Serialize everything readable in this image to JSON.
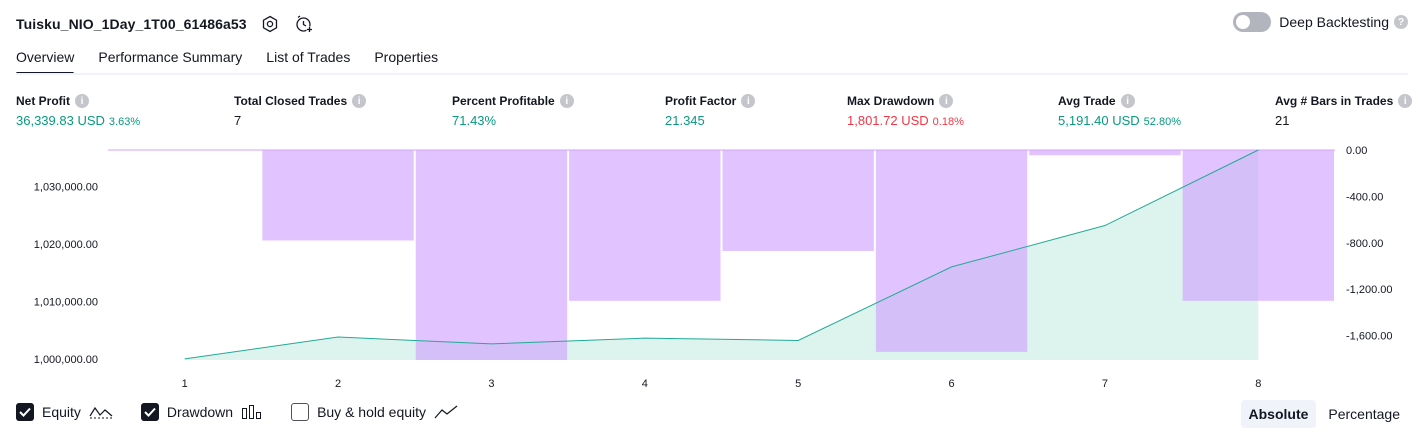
{
  "header": {
    "strategy_title": "Tuisku_NIO_1Day_1T00_61486a53",
    "deep_backtesting_label": "Deep Backtesting",
    "deep_backtesting_enabled": false
  },
  "tabs": [
    {
      "label": "Overview",
      "active": true
    },
    {
      "label": "Performance Summary",
      "active": false
    },
    {
      "label": "List of Trades",
      "active": false
    },
    {
      "label": "Properties",
      "active": false
    }
  ],
  "stats": [
    {
      "label": "Net Profit",
      "value": "36,339.83 USD",
      "pct": "3.63%",
      "tone": "pos"
    },
    {
      "label": "Total Closed Trades",
      "value": "7",
      "pct": "",
      "tone": "neutral"
    },
    {
      "label": "Percent Profitable",
      "value": "71.43%",
      "pct": "",
      "tone": "pos"
    },
    {
      "label": "Profit Factor",
      "value": "21.345",
      "pct": "",
      "tone": "pos"
    },
    {
      "label": "Max Drawdown",
      "value": "1,801.72 USD",
      "pct": "0.18%",
      "tone": "neg"
    },
    {
      "label": "Avg Trade",
      "value": "5,191.40 USD",
      "pct": "52.80%",
      "tone": "pos"
    },
    {
      "label": "Avg # Bars in Trades",
      "value": "21",
      "pct": "",
      "tone": "neutral"
    }
  ],
  "chart_data": {
    "type": "line",
    "x": [
      1,
      2,
      3,
      4,
      5,
      6,
      7,
      8
    ],
    "series": [
      {
        "name": "Equity",
        "values": [
          1000000,
          1003800,
          1002600,
          1003600,
          1003200,
          1016000,
          1023200,
          1036340
        ]
      },
      {
        "name": "Drawdown",
        "values": [
          0,
          -780,
          -1810,
          -1300,
          -870,
          -1740,
          -45,
          -1300
        ]
      }
    ],
    "left_axis": {
      "ticks": [
        "1,030,000.00",
        "1,020,000.00",
        "1,010,000.00",
        "1,000,000.00"
      ],
      "tick_values": [
        1030000,
        1020000,
        1010000,
        1000000
      ],
      "range": [
        999800,
        1036340
      ]
    },
    "right_axis": {
      "ticks": [
        "0.00",
        "-400.00",
        "-800.00",
        "-1,200.00",
        "-1,600.00"
      ],
      "tick_values": [
        0,
        -400,
        -800,
        -1200,
        -1600
      ],
      "range": [
        -1810,
        0
      ]
    },
    "x_ticks": [
      "1",
      "2",
      "3",
      "4",
      "5",
      "6",
      "7",
      "8"
    ],
    "colors": {
      "equity_line": "#22ab94",
      "equity_fill": "#ddf3ee",
      "drawdown": "#d1a3ff"
    },
    "grid": false
  },
  "legend": [
    {
      "label": "Equity",
      "checked": true,
      "icon": "equity-wave-icon"
    },
    {
      "label": "Drawdown",
      "checked": true,
      "icon": "drawdown-bars-icon"
    },
    {
      "label": "Buy & hold equity",
      "checked": false,
      "icon": "buy-hold-line-icon"
    }
  ],
  "mode": {
    "absolute_label": "Absolute",
    "percentage_label": "Percentage",
    "active": "absolute"
  }
}
